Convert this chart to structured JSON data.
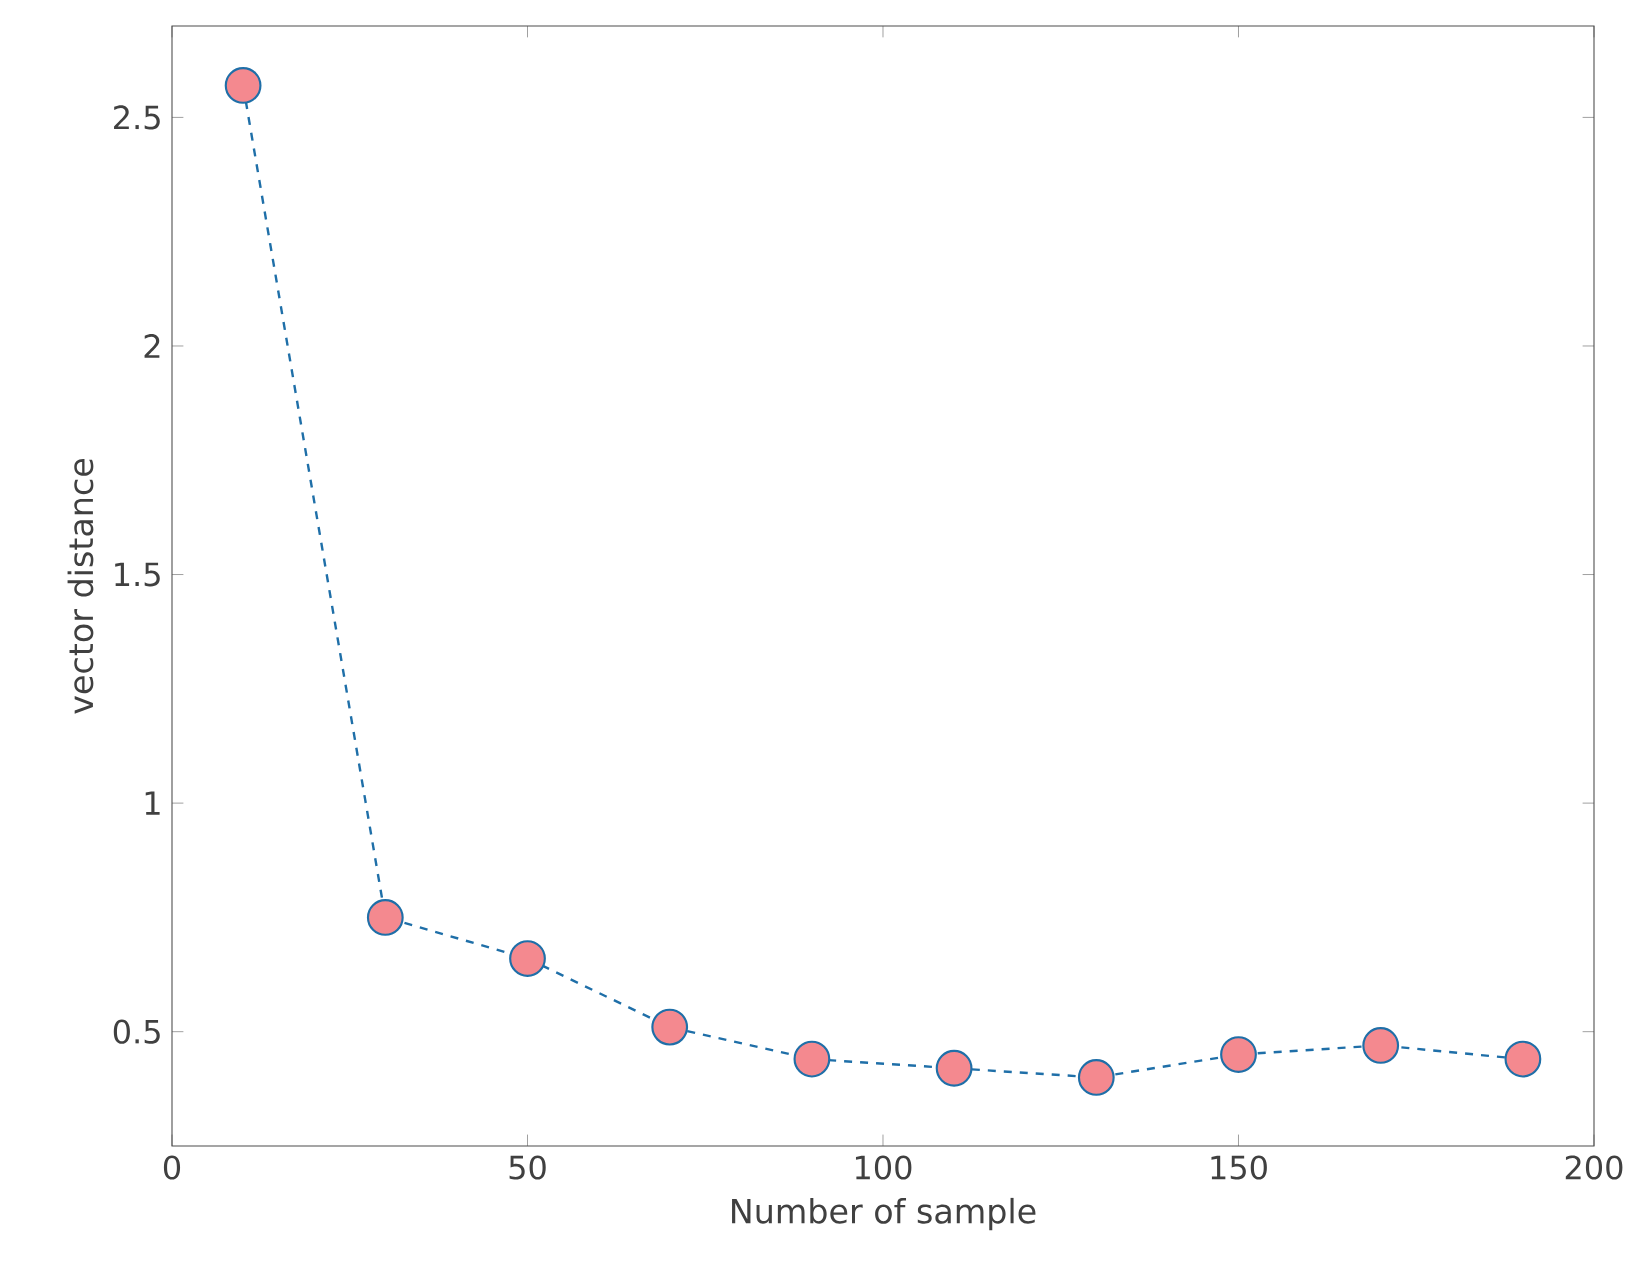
{
  "chart_data": {
    "type": "line",
    "xlabel": "Number of sample",
    "ylabel": "vector distance",
    "x": [
      10,
      30,
      50,
      70,
      90,
      110,
      130,
      150,
      170,
      190
    ],
    "values": [
      2.57,
      0.75,
      0.66,
      0.51,
      0.44,
      0.42,
      0.4,
      0.45,
      0.47,
      0.44
    ],
    "color": "#1f6fa8",
    "colors": [
      "#f4898f",
      "#f4898f",
      "#f4898f",
      "#f4898f",
      "#f4898f",
      "#f4898f",
      "#f4898f",
      "#f4898f",
      "#f4898f",
      "#f4898f"
    ],
    "marker": "circle",
    "line_style": "dashed",
    "xlim": [
      0,
      200
    ],
    "ylim": [
      0.25,
      2.7
    ],
    "xticks": [
      0,
      50,
      100,
      150,
      200
    ],
    "yticks": [
      0.5,
      1,
      1.5,
      2,
      2.5
    ],
    "grid": false
  }
}
